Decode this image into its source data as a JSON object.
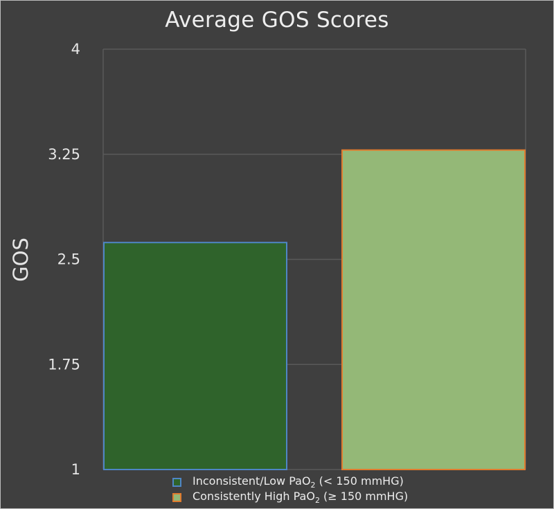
{
  "chart_data": {
    "type": "bar",
    "title": "Average GOS Scores",
    "xlabel": "",
    "ylabel": "GOS",
    "ylim": [
      1,
      4
    ],
    "yticks": [
      1,
      1.75,
      2.5,
      3.25,
      4
    ],
    "ytick_labels": [
      "1",
      "1.75",
      "2.5",
      "3.25",
      "4"
    ],
    "grid": true,
    "legend_position": "bottom",
    "categories": [
      "Inconsistent/Low PaO2 (< 150 mmHG)",
      "Consistently High PaO2 (≥ 150 mmHG)"
    ],
    "values": [
      2.62,
      3.28
    ],
    "series": [
      {
        "legend_prefix": "Inconsistent/Low PaO",
        "legend_sub": "2",
        "legend_suffix": " (< 150 mmHG)",
        "value": 2.62,
        "fill": "#2f632b",
        "stroke": "#4f86c6"
      },
      {
        "legend_prefix": "Consistently High PaO",
        "legend_sub": "2",
        "legend_suffix": " (≥ 150 mmHG)",
        "value": 3.28,
        "fill": "#94b877",
        "stroke": "#e07b2e"
      }
    ]
  },
  "colors": {
    "background": "#3f3f3f",
    "gridline": "#5a5a5a",
    "text": "#e6e6e6"
  }
}
